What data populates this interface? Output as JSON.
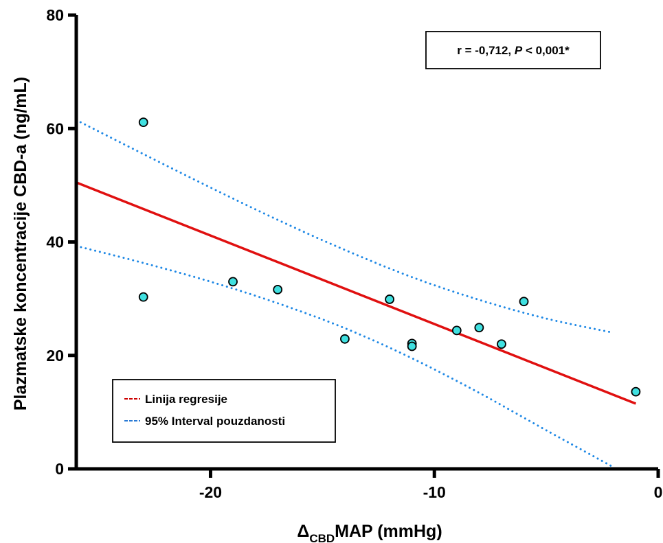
{
  "chart_data": {
    "type": "scatter",
    "xlabel": {
      "delta": "Δ",
      "sub": "CBD",
      "rest": "MAP (mmHg)"
    },
    "ylabel": "Plazmatske koncentracije CBD-a (ng/mL)",
    "xlim": [
      -26,
      0
    ],
    "ylim": [
      0,
      80
    ],
    "x_ticks": [
      -20,
      -10,
      0
    ],
    "x_tick_labels": [
      "-20",
      "-10",
      "0"
    ],
    "y_ticks": [
      0,
      20,
      40,
      60,
      80
    ],
    "y_tick_labels": [
      "0",
      "20",
      "40",
      "60",
      "80"
    ],
    "grid": false,
    "points": [
      {
        "x": -23,
        "y": 61.1
      },
      {
        "x": -23,
        "y": 30.3
      },
      {
        "x": -19,
        "y": 33.0
      },
      {
        "x": -17,
        "y": 31.6
      },
      {
        "x": -14,
        "y": 22.9
      },
      {
        "x": -12,
        "y": 29.9
      },
      {
        "x": -11,
        "y": 22.1
      },
      {
        "x": -11,
        "y": 21.6
      },
      {
        "x": -9,
        "y": 24.4
      },
      {
        "x": -8,
        "y": 24.9
      },
      {
        "x": -7,
        "y": 22.0
      },
      {
        "x": -6,
        "y": 29.5
      },
      {
        "x": -1,
        "y": 13.6
      }
    ],
    "regression_line": {
      "x": [
        -26,
        -1
      ],
      "y": [
        50.5,
        11.5
      ]
    },
    "ci_upper": {
      "x": [
        -26,
        -23,
        -20,
        -17,
        -14,
        -11,
        -8,
        -5,
        -2
      ],
      "y": [
        61.5,
        55.5,
        49.6,
        43.9,
        38.6,
        33.8,
        29.8,
        26.5,
        24.0
      ]
    },
    "ci_lower": {
      "x": [
        -26,
        -23,
        -20,
        -17,
        -14,
        -11,
        -8,
        -5,
        -2
      ],
      "y": [
        39.3,
        36.3,
        33.0,
        29.2,
        24.8,
        19.5,
        13.4,
        6.8,
        0.3
      ]
    },
    "legend": {
      "position": "bottom-left",
      "entries": [
        {
          "label": "Linija regresije",
          "color": "#cc0000"
        },
        {
          "label": "95% Interval pouzdanosti",
          "color": "#2a7ad5"
        }
      ]
    },
    "annotation": {
      "text_prefix": "r = -0,712, ",
      "text_p": "P",
      "text_suffix": " < 0,001*"
    },
    "colors": {
      "point_fill": "#40e0e0",
      "point_stroke": "#000000",
      "regression": "#e01010",
      "ci": "#1e88e5"
    }
  }
}
